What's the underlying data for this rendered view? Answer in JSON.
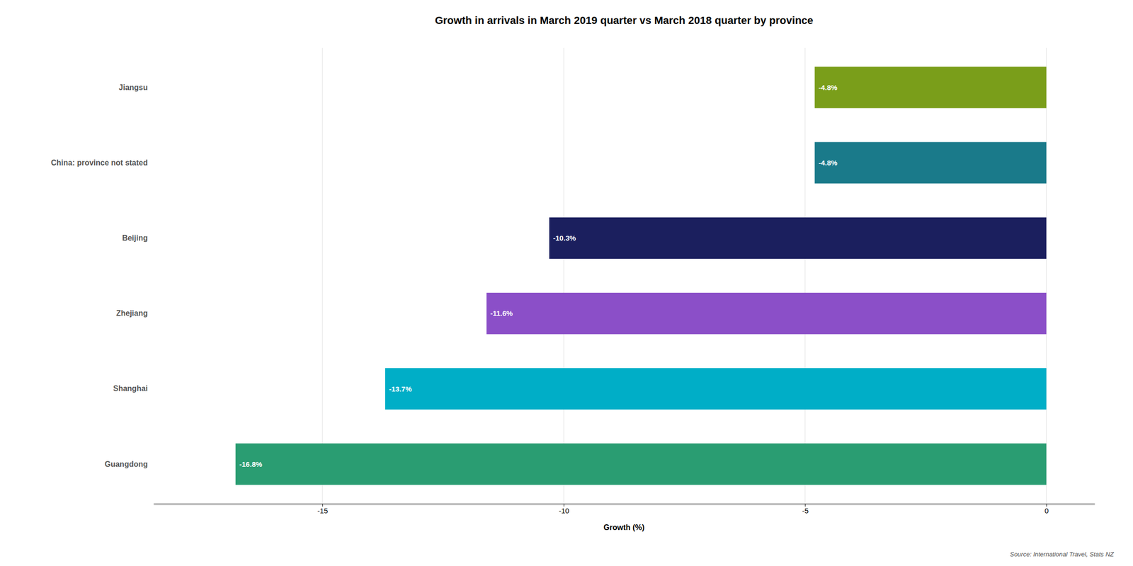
{
  "chart_data": {
    "type": "bar",
    "orientation": "horizontal",
    "title": "Growth in arrivals in March 2019 quarter vs March 2018 quarter by province",
    "xlabel": "Growth (%)",
    "categories": [
      "Guangdong",
      "Shanghai",
      "Zhejiang",
      "Beijing",
      "China: province not stated",
      "Jiangsu"
    ],
    "values": [
      -16.8,
      -13.7,
      -11.6,
      -10.3,
      -4.8,
      -4.8
    ],
    "value_labels": [
      "-16.8%",
      "-13.7%",
      "-11.6%",
      "-10.3%",
      "-4.8%",
      "-4.8%"
    ],
    "data_labels": true,
    "colors": [
      "#2a9d72",
      "#00aec7",
      "#8b4fc8",
      "#1b1f5e",
      "#1a7a8a",
      "#7a9e1a"
    ],
    "xlim": [
      -18.5,
      1.0
    ],
    "xticks": [
      -15,
      -10,
      -5,
      0
    ],
    "grid": true,
    "annotations": [
      "Source: International Travel, Stats NZ"
    ]
  }
}
